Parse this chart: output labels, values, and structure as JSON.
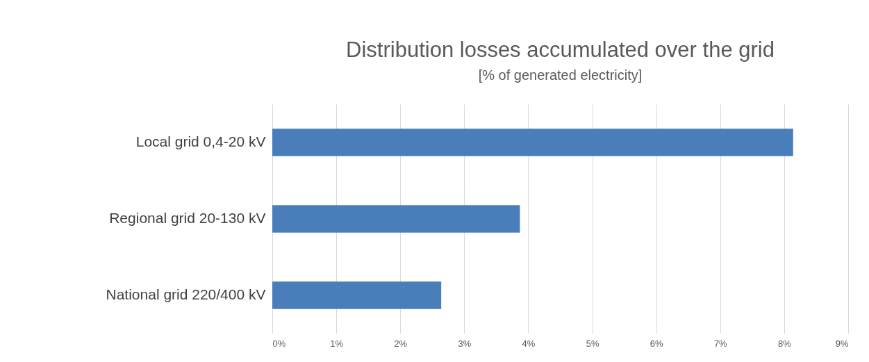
{
  "chart_data": {
    "type": "bar",
    "orientation": "horizontal",
    "title": "Distribution losses accumulated over the grid",
    "subtitle": "[% of generated electricity]",
    "categories": [
      "Local grid 0,4-20 kV",
      "Regional grid 20-130 kV",
      "National grid 220/400 kV"
    ],
    "values": [
      8.14,
      3.87,
      2.64
    ],
    "color": "#4a7ebb",
    "xlim": [
      0,
      9
    ],
    "xticks": [
      {
        "value": 0,
        "label": "0%"
      },
      {
        "value": 1,
        "label": "1%"
      },
      {
        "value": 2,
        "label": "2%"
      },
      {
        "value": 3,
        "label": "3%"
      },
      {
        "value": 4,
        "label": "4%"
      },
      {
        "value": 5,
        "label": "5%"
      },
      {
        "value": 6,
        "label": "6%"
      },
      {
        "value": 7,
        "label": "7%"
      },
      {
        "value": 8,
        "label": "8%"
      },
      {
        "value": 9,
        "label": "9%"
      }
    ],
    "grid": true
  }
}
